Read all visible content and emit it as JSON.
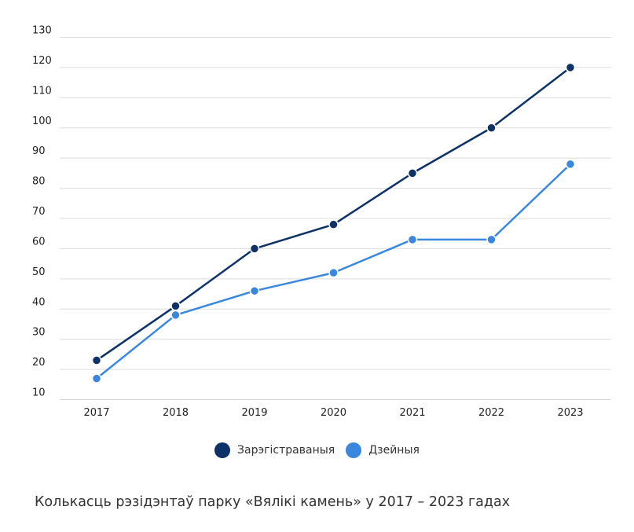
{
  "chart_data": {
    "type": "line",
    "title": "",
    "xlabel": "",
    "ylabel": "",
    "categories": [
      "2017",
      "2018",
      "2019",
      "2020",
      "2021",
      "2022",
      "2023"
    ],
    "ylim": [
      10,
      130
    ],
    "yticks": [
      10,
      20,
      30,
      40,
      50,
      60,
      70,
      80,
      90,
      100,
      110,
      120,
      130
    ],
    "grid": true,
    "legend_position": "bottom",
    "series": [
      {
        "name": "Зарэгістраваныя",
        "color": "#0d3268",
        "values": [
          23,
          41,
          60,
          68,
          85,
          100,
          120
        ]
      },
      {
        "name": "Дзейныя",
        "color": "#3a87e0",
        "values": [
          17,
          38,
          46,
          52,
          63,
          63,
          88
        ]
      }
    ]
  },
  "caption": "Колькасць рэзідэнтаў парку «Вялікі камень» у 2017 – 2023 гадах"
}
